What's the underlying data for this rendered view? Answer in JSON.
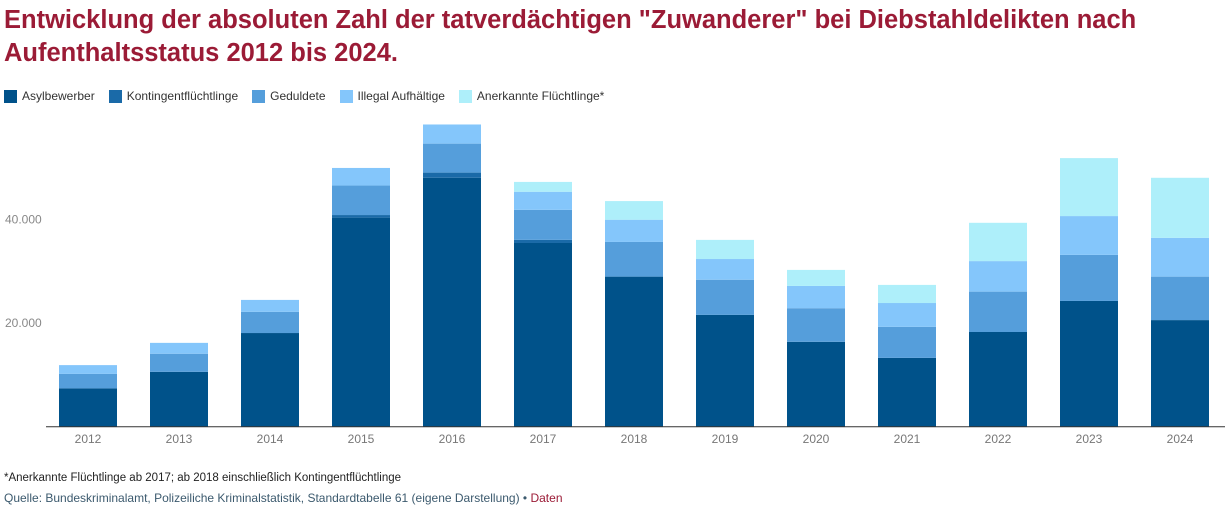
{
  "title": "Entwicklung der absoluten Zahl der tatverdächtigen \"Zuwanderer\" bei Diebstahldelikten nach Aufenthaltsstatus 2012 bis 2024.",
  "footnote": "*Anerkannte Flüchtlinge ab 2017; ab 2018 einschließlich Kontingentflüchtlinge",
  "source": {
    "text": "Quelle: Bundeskriminalamt, Polizeiliche Kriminalstatistik, Standardtabelle 61 (eigene Darstellung)",
    "separator": " • ",
    "link": "Daten"
  },
  "chart_data": {
    "type": "bar",
    "stacked": true,
    "categories": [
      "2012",
      "2013",
      "2014",
      "2015",
      "2016",
      "2017",
      "2018",
      "2019",
      "2020",
      "2021",
      "2022",
      "2023",
      "2024"
    ],
    "series": [
      {
        "name": "Asylbewerber",
        "color": "#00528a",
        "values": [
          7400,
          10600,
          18100,
          40400,
          48100,
          35500,
          29000,
          21600,
          16400,
          13300,
          18300,
          24300,
          20600
        ]
      },
      {
        "name": "Kontingentflüchtlinge",
        "color": "#1a6aa8",
        "values": [
          0,
          0,
          0,
          500,
          1000,
          600,
          0,
          0,
          0,
          0,
          0,
          0,
          0
        ]
      },
      {
        "name": "Geduldete",
        "color": "#559edb",
        "values": [
          2800,
          3500,
          4100,
          5700,
          5600,
          5800,
          6700,
          6800,
          6500,
          6000,
          7800,
          8900,
          8400
        ]
      },
      {
        "name": "Illegal Aufhältige",
        "color": "#84c6fb",
        "values": [
          1700,
          2100,
          2300,
          3400,
          3700,
          3500,
          4300,
          4000,
          4300,
          4600,
          5900,
          7500,
          7500
        ]
      },
      {
        "name": "Anerkannte Flüchtlinge*",
        "color": "#aeeffa",
        "values": [
          0,
          0,
          0,
          0,
          0,
          1900,
          3600,
          3700,
          3100,
          3500,
          7400,
          11200,
          11600
        ]
      }
    ],
    "yticks": [
      {
        "value": 20000,
        "label": "20.000"
      },
      {
        "value": 40000,
        "label": "40.000"
      }
    ],
    "ylim": [
      0,
      60000
    ],
    "grid": false,
    "legend_position": "top-left"
  }
}
